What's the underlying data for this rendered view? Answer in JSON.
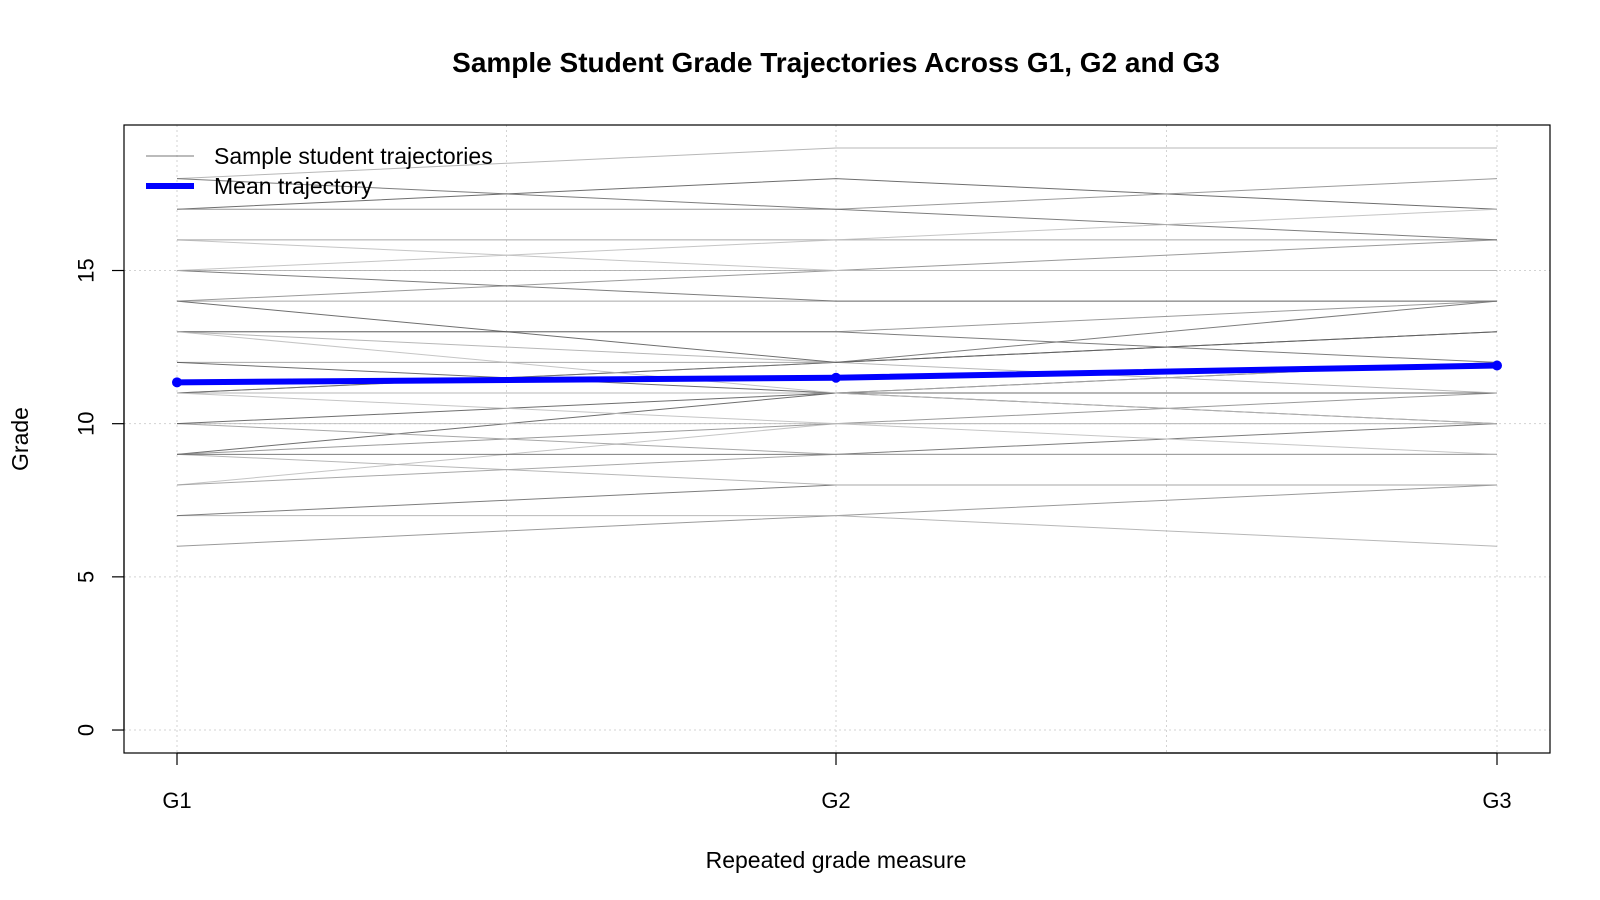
{
  "chart_data": {
    "type": "line",
    "title": "Sample Student Grade Trajectories Across G1, G2 and G3",
    "xlabel": "Repeated grade measure",
    "ylabel": "Grade",
    "categories": [
      "G1",
      "G2",
      "G3"
    ],
    "y_ticks": [
      0,
      5,
      10,
      15
    ],
    "ylim": [
      -0.75,
      19.75
    ],
    "grid": true,
    "legend": {
      "position": "top-left",
      "entries": [
        {
          "label": "Sample student trajectories",
          "color": "#777777",
          "style": "thin"
        },
        {
          "label": "Mean trajectory",
          "color": "#0000ff",
          "style": "thick"
        }
      ]
    },
    "mean_trajectory": {
      "name": "Mean trajectory",
      "color": "#0000ff",
      "values": [
        11.35,
        11.5,
        11.9
      ]
    },
    "trajectories": [
      [
        6,
        7,
        8
      ],
      [
        7,
        7,
        6
      ],
      [
        7,
        8,
        8
      ],
      [
        8,
        10,
        10
      ],
      [
        8,
        9,
        9
      ],
      [
        9,
        11,
        12
      ],
      [
        9,
        10,
        11
      ],
      [
        9,
        8,
        8
      ],
      [
        9,
        9,
        10
      ],
      [
        10,
        10,
        10
      ],
      [
        10,
        9,
        9
      ],
      [
        10,
        11,
        11
      ],
      [
        11,
        12,
        13
      ],
      [
        11,
        11,
        12
      ],
      [
        11,
        12,
        14
      ],
      [
        11,
        10,
        9
      ],
      [
        12,
        12,
        13
      ],
      [
        12,
        11,
        10
      ],
      [
        13,
        13,
        14
      ],
      [
        13,
        12,
        11
      ],
      [
        13,
        13,
        12
      ],
      [
        13,
        11,
        10
      ],
      [
        14,
        14,
        14
      ],
      [
        14,
        12,
        13
      ],
      [
        14,
        15,
        16
      ],
      [
        15,
        15,
        15
      ],
      [
        15,
        14,
        14
      ],
      [
        16,
        15,
        15
      ],
      [
        16,
        16,
        16
      ],
      [
        17,
        18,
        17
      ],
      [
        17,
        17,
        18
      ],
      [
        18,
        19,
        19
      ],
      [
        18,
        17,
        16
      ],
      [
        15,
        16,
        17
      ]
    ]
  }
}
